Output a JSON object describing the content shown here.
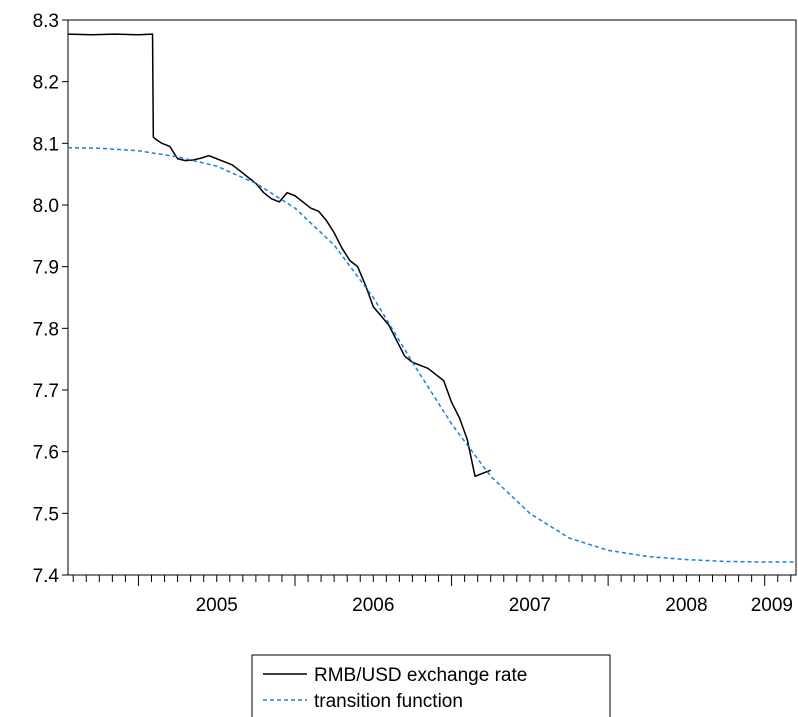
{
  "chart_data": {
    "type": "line",
    "title": "",
    "xlabel": "",
    "ylabel": "",
    "xlim": [
      2004.55,
      2009.2
    ],
    "ylim": [
      7.4,
      8.3
    ],
    "y_ticks": [
      {
        "value": 7.4,
        "label": "7.4"
      },
      {
        "value": 7.5,
        "label": "7.5"
      },
      {
        "value": 7.6,
        "label": "7.6"
      },
      {
        "value": 7.7,
        "label": "7.7"
      },
      {
        "value": 7.8,
        "label": "7.8"
      },
      {
        "value": 7.9,
        "label": "7.9"
      },
      {
        "value": 8.0,
        "label": "8.0"
      },
      {
        "value": 8.1,
        "label": "8.1"
      },
      {
        "value": 8.2,
        "label": "8.2"
      },
      {
        "value": 8.3,
        "label": "8.3"
      }
    ],
    "x_ticks": [
      {
        "value": 2005,
        "label": "2005"
      },
      {
        "value": 2006,
        "label": "2006"
      },
      {
        "value": 2007,
        "label": "2007"
      },
      {
        "value": 2008,
        "label": "2008"
      },
      {
        "value": 2009,
        "label": "2009"
      }
    ],
    "grid": false,
    "legend_position": "bottom-center",
    "series": [
      {
        "name": "RMB/USD exchange rate",
        "color": "#000000",
        "style": "solid",
        "x": [
          2004.55,
          2004.7,
          2004.85,
          2005.0,
          2005.09,
          2005.095,
          2005.12,
          2005.15,
          2005.2,
          2005.25,
          2005.3,
          2005.35,
          2005.4,
          2005.45,
          2005.5,
          2005.55,
          2005.6,
          2005.65,
          2005.7,
          2005.75,
          2005.8,
          2005.85,
          2005.9,
          2005.95,
          2006.0,
          2006.05,
          2006.1,
          2006.15,
          2006.2,
          2006.25,
          2006.3,
          2006.35,
          2006.4,
          2006.45,
          2006.5,
          2006.55,
          2006.6,
          2006.65,
          2006.7,
          2006.75,
          2006.8,
          2006.85,
          2006.9,
          2006.95,
          2007.0,
          2007.05,
          2007.1,
          2007.15,
          2007.2,
          2007.25
        ],
        "y": [
          8.277,
          8.276,
          8.277,
          8.276,
          8.277,
          8.11,
          8.105,
          8.1,
          8.095,
          8.075,
          8.072,
          8.073,
          8.076,
          8.08,
          8.075,
          8.07,
          8.065,
          8.055,
          8.045,
          8.035,
          8.02,
          8.01,
          8.005,
          8.02,
          8.015,
          8.005,
          7.995,
          7.99,
          7.975,
          7.955,
          7.93,
          7.91,
          7.9,
          7.87,
          7.835,
          7.82,
          7.805,
          7.78,
          7.755,
          7.745,
          7.74,
          7.735,
          7.725,
          7.715,
          7.68,
          7.655,
          7.62,
          7.56,
          7.565,
          7.57
        ]
      },
      {
        "name": "transition function",
        "color": "#1a7fe0",
        "style": "dashed",
        "x": [
          2004.55,
          2004.75,
          2005.0,
          2005.25,
          2005.5,
          2005.75,
          2006.0,
          2006.25,
          2006.5,
          2006.75,
          2007.0,
          2007.25,
          2007.5,
          2007.75,
          2008.0,
          2008.25,
          2008.5,
          2008.75,
          2009.0,
          2009.2
        ],
        "y": [
          8.093,
          8.092,
          8.088,
          8.078,
          8.063,
          8.035,
          7.995,
          7.935,
          7.85,
          7.745,
          7.645,
          7.56,
          7.5,
          7.46,
          7.44,
          7.43,
          7.425,
          7.422,
          7.421,
          7.421
        ]
      }
    ]
  }
}
